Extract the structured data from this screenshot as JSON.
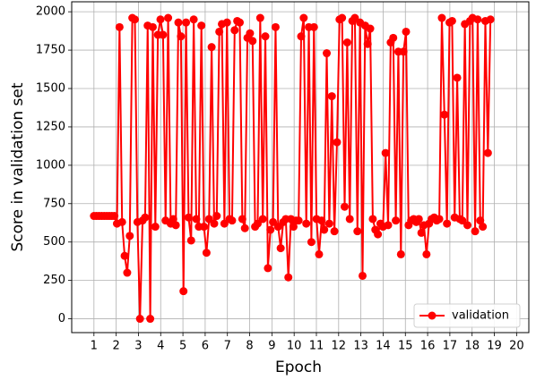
{
  "chart_data": {
    "type": "line",
    "xlabel": "Epoch",
    "ylabel": "Score in validation set",
    "x": [
      1.0,
      1.115,
      1.23,
      1.345,
      1.46,
      1.575,
      1.69,
      1.805,
      1.92,
      2.035,
      2.15,
      2.265,
      2.38,
      2.495,
      2.61,
      2.725,
      2.84,
      2.955,
      3.07,
      3.185,
      3.3,
      3.415,
      3.53,
      3.645,
      3.76,
      3.875,
      3.99,
      4.105,
      4.22,
      4.335,
      4.45,
      4.565,
      4.68,
      4.795,
      4.91,
      5.025,
      5.14,
      5.255,
      5.37,
      5.485,
      5.6,
      5.715,
      5.83,
      5.945,
      6.06,
      6.175,
      6.29,
      6.405,
      6.52,
      6.635,
      6.75,
      6.865,
      6.98,
      7.095,
      7.21,
      7.325,
      7.44,
      7.555,
      7.67,
      7.785,
      7.9,
      8.015,
      8.13,
      8.245,
      8.36,
      8.475,
      8.59,
      8.705,
      8.82,
      8.935,
      9.05,
      9.165,
      9.28,
      9.395,
      9.51,
      9.625,
      9.74,
      9.855,
      9.97,
      10.085,
      10.2,
      10.315,
      10.43,
      10.545,
      10.66,
      10.775,
      10.89,
      11.005,
      11.12,
      11.235,
      11.35,
      11.465,
      11.58,
      11.695,
      11.81,
      11.925,
      12.04,
      12.155,
      12.27,
      12.385,
      12.5,
      12.615,
      12.73,
      12.845,
      12.96,
      13.075,
      13.19,
      13.305,
      13.42,
      13.535,
      13.65,
      13.765,
      13.88,
      13.995,
      14.11,
      14.225,
      14.34,
      14.455,
      14.57,
      14.685,
      14.8,
      14.915,
      15.03,
      15.145,
      15.26,
      15.375,
      15.49,
      15.605,
      15.72,
      15.835,
      15.95,
      16.065,
      16.18,
      16.295,
      16.41,
      16.525,
      16.64,
      16.755,
      16.87,
      16.985,
      17.1,
      17.215,
      17.33,
      17.445,
      17.56,
      17.675,
      17.79,
      17.905,
      18.02,
      18.135,
      18.25,
      18.365,
      18.48,
      18.595,
      18.71,
      18.825
    ],
    "series": [
      {
        "name": "validation",
        "color": "#ff0000",
        "values": [
          670,
          670,
          670,
          670,
          670,
          670,
          670,
          670,
          670,
          620,
          1900,
          630,
          410,
          300,
          540,
          1960,
          1950,
          630,
          0,
          640,
          660,
          1910,
          0,
          1900,
          600,
          1850,
          1950,
          1850,
          640,
          1960,
          620,
          650,
          610,
          1930,
          1840,
          180,
          1930,
          660,
          510,
          1950,
          650,
          600,
          1910,
          600,
          430,
          650,
          1770,
          620,
          670,
          1870,
          1920,
          620,
          1930,
          650,
          640,
          1880,
          1940,
          1930,
          650,
          590,
          1830,
          1860,
          1810,
          600,
          620,
          1960,
          650,
          1840,
          330,
          580,
          630,
          1900,
          600,
          460,
          630,
          650,
          270,
          650,
          600,
          640,
          640,
          1840,
          1960,
          620,
          1900,
          500,
          1900,
          650,
          420,
          640,
          580,
          1730,
          620,
          1450,
          570,
          1150,
          1950,
          1960,
          730,
          1800,
          650,
          1940,
          1960,
          570,
          1930,
          280,
          1910,
          1790,
          1890,
          650,
          580,
          550,
          620,
          600,
          1080,
          610,
          1800,
          1830,
          640,
          1740,
          420,
          1740,
          1870,
          610,
          640,
          650,
          630,
          650,
          560,
          610,
          420,
          620,
          650,
          660,
          640,
          650,
          1960,
          1330,
          620,
          1930,
          1940,
          660,
          1570,
          650,
          640,
          1920,
          610,
          1940,
          1960,
          570,
          1950,
          640,
          600,
          1940,
          1080,
          1950
        ]
      }
    ],
    "xlim": [
      0.0,
      20.55
    ],
    "ylim": [
      -90,
      2065
    ],
    "xticks": [
      1,
      2,
      3,
      4,
      5,
      6,
      7,
      8,
      9,
      10,
      11,
      12,
      13,
      14,
      15,
      16,
      17,
      18,
      19,
      20
    ],
    "yticks": [
      0,
      250,
      500,
      750,
      1000,
      1250,
      1500,
      1750,
      2000
    ],
    "grid": true,
    "legend": "lower right"
  }
}
